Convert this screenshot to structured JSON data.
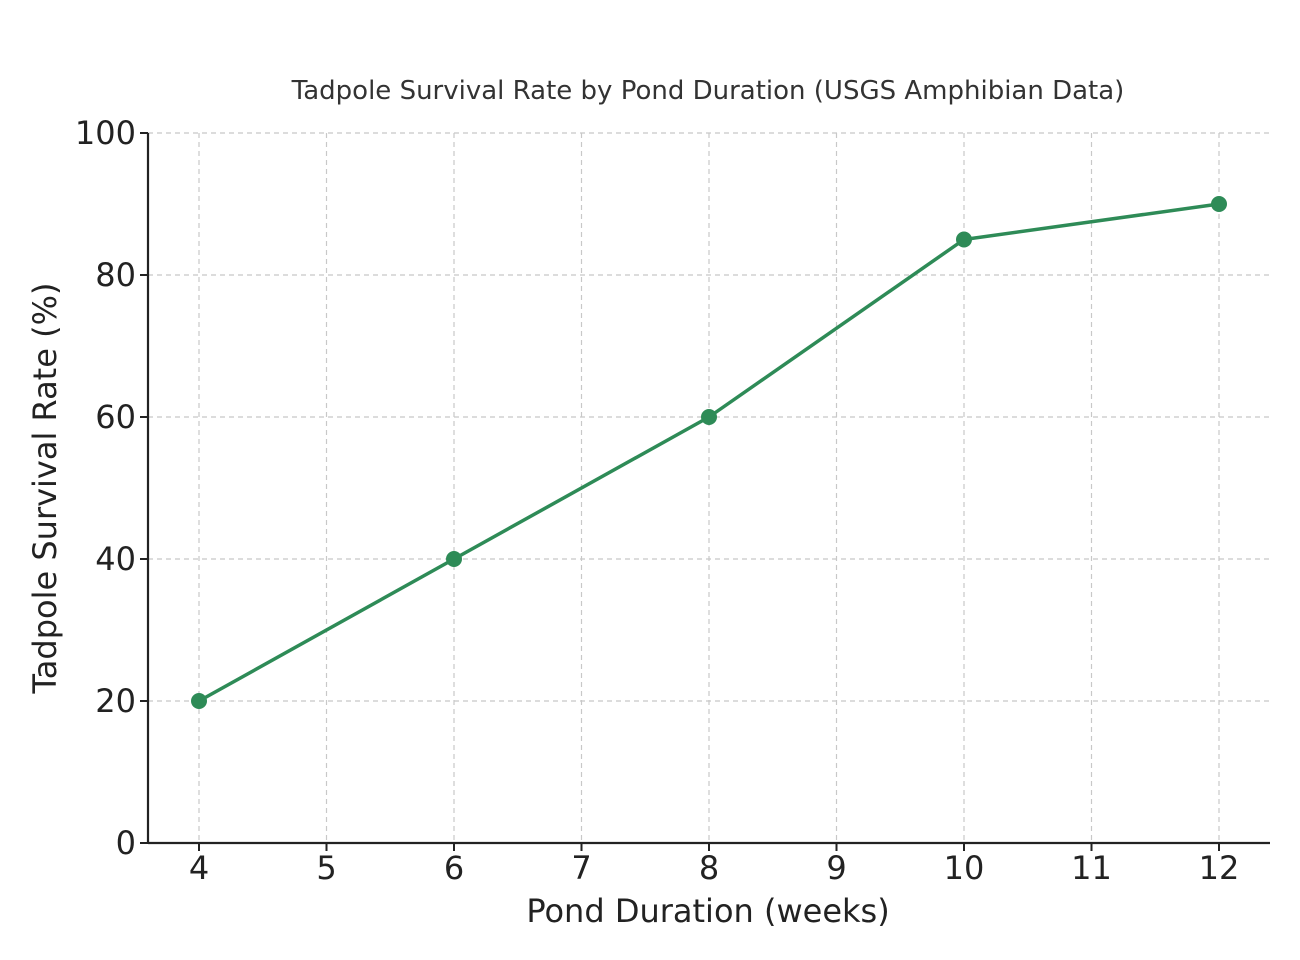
{
  "chart_data": {
    "type": "line",
    "title": "Tadpole Survival Rate by Pond Duration (USGS Amphibian Data)",
    "xlabel": "Pond Duration (weeks)",
    "ylabel": "Tadpole Survival Rate (%)",
    "xlim": [
      3.6,
      12.4
    ],
    "ylim": [
      0,
      100
    ],
    "xticks": [
      4,
      5,
      6,
      7,
      8,
      9,
      10,
      11,
      12
    ],
    "yticks": [
      0,
      20,
      40,
      60,
      80,
      100
    ],
    "grid": true,
    "line_color": "#2e8b57",
    "series": [
      {
        "x": [
          4,
          6,
          8,
          10,
          12
        ],
        "values": [
          20,
          40,
          60,
          85,
          90
        ]
      }
    ]
  }
}
